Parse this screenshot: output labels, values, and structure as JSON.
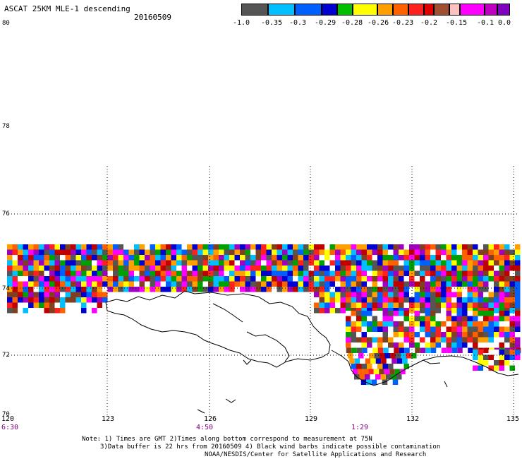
{
  "header": {
    "title": "ASCAT 25KM MLE-1 descending",
    "date": "20160509"
  },
  "colorbar": {
    "colors": [
      "#555555",
      "#00c0ff",
      "#0060ff",
      "#0000d0",
      "#00c000",
      "#ffff00",
      "#ffa000",
      "#ff6000",
      "#ff2020",
      "#e00000",
      "#a05030",
      "#ffc0c0",
      "#ff00ff",
      "#c000c0",
      "#8000c0"
    ],
    "ticks": [
      "-1.0",
      "-0.35",
      "-0.3",
      "-0.29",
      "-0.28",
      "-0.26",
      "-0.23",
      "-0.2",
      "-0.15",
      "-0.1",
      "0.0"
    ]
  },
  "axes": {
    "lat_labels": [
      "80",
      "78",
      "76",
      "74",
      "72",
      "70"
    ],
    "lon_labels": [
      "120",
      "123",
      "126",
      "129",
      "132",
      "135"
    ],
    "time_labels": [
      "6:30",
      "4:50",
      "1:29"
    ]
  },
  "notes": {
    "line1": "Note: 1) Times are GMT 2)Times along bottom correspond to measurement at 75N",
    "line2": "3)Data buffer is 22 hrs from 20160509 4) Black wind barbs indicate possible contamination",
    "line3": "NOAA/NESDIS/Center for Satellite Applications and Research"
  }
}
